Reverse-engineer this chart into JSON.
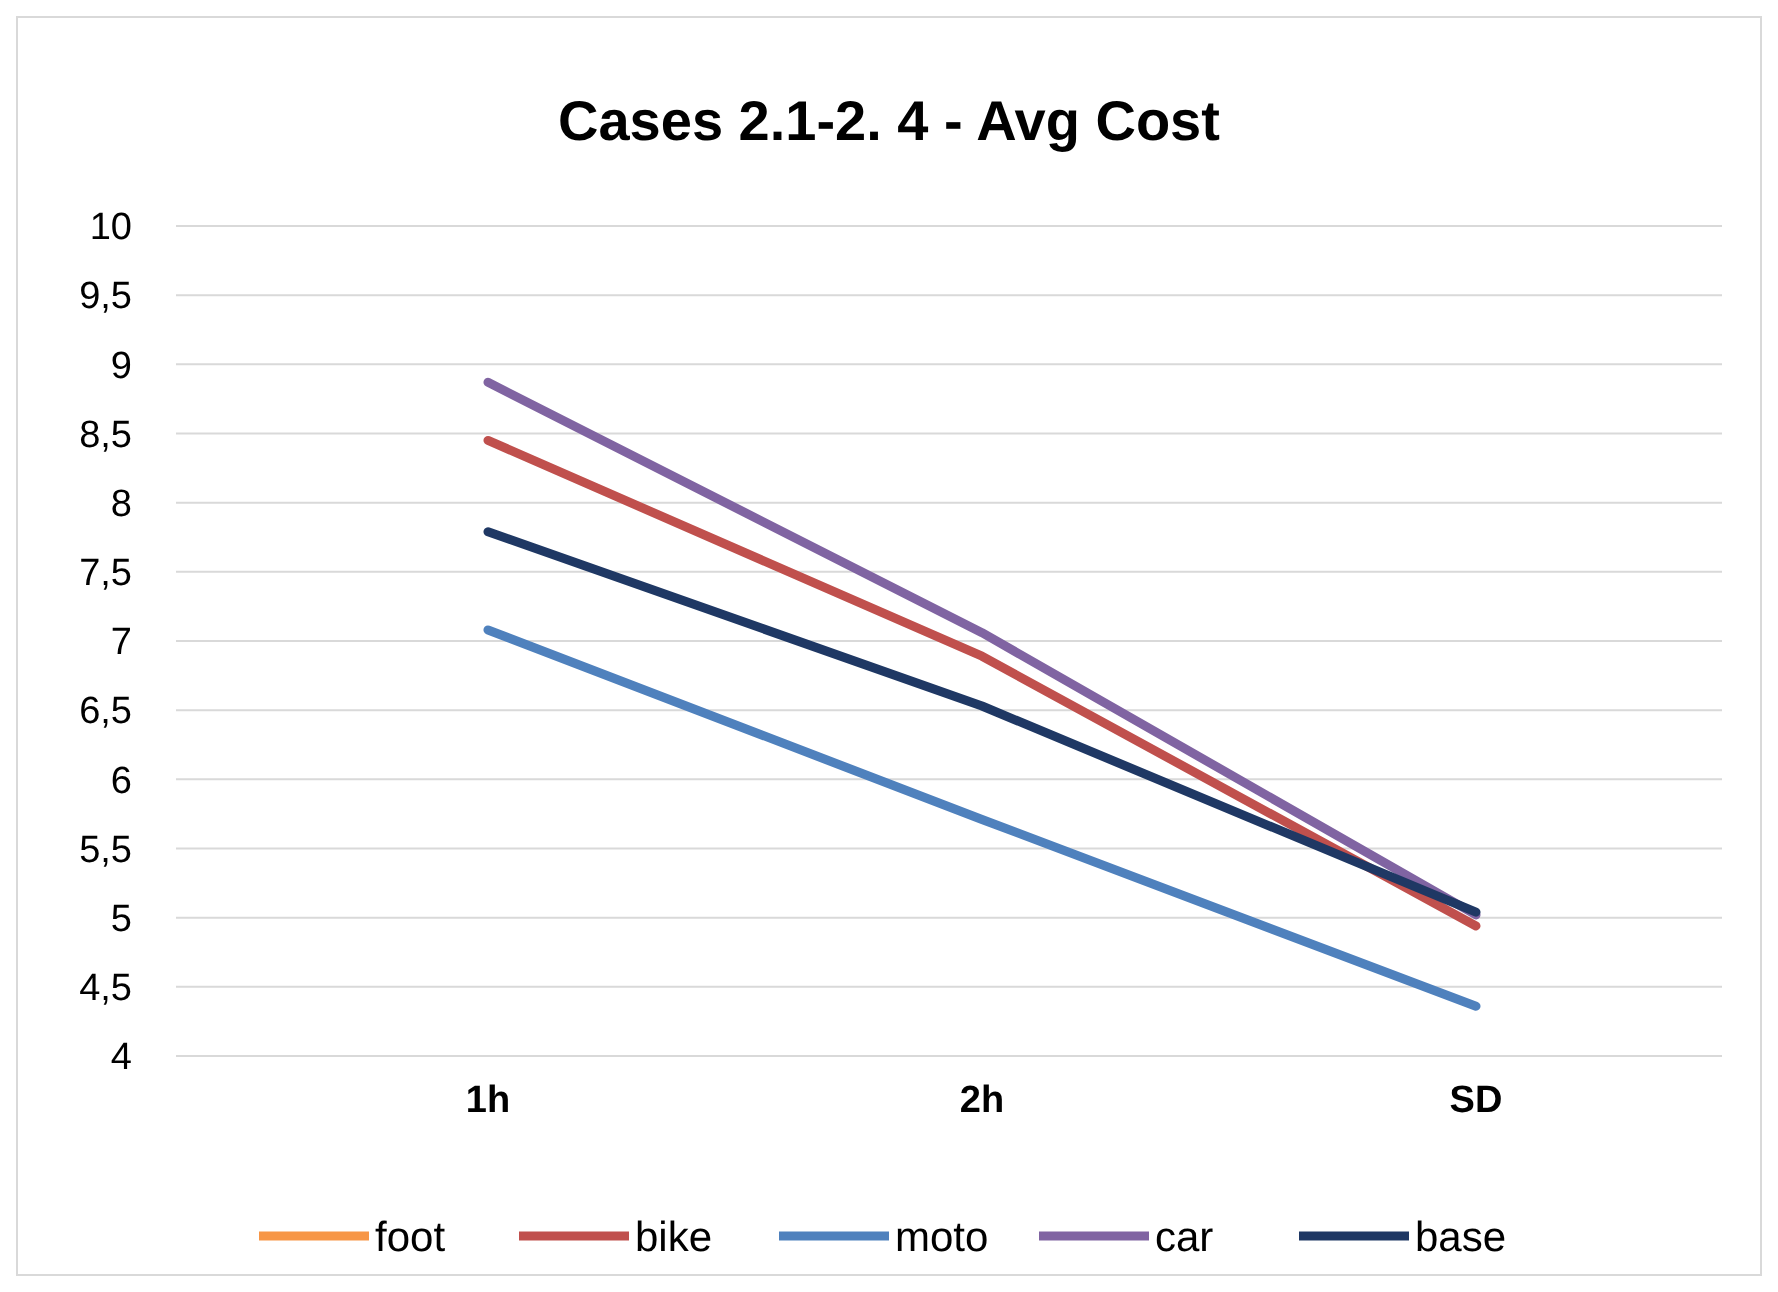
{
  "chart_data": {
    "type": "line",
    "title": "Cases 2.1-2. 4 - Avg Cost",
    "categories": [
      "1h",
      "2h",
      "SD"
    ],
    "series": [
      {
        "name": "foot",
        "color": "#f79646",
        "values": [
          null,
          null,
          null
        ]
      },
      {
        "name": "bike",
        "color": "#c0504d",
        "values": [
          8.45,
          6.89,
          4.94
        ]
      },
      {
        "name": "moto",
        "color": "#4f81bd",
        "values": [
          7.08,
          5.71,
          4.36
        ]
      },
      {
        "name": "car",
        "color": "#8064a2",
        "values": [
          8.87,
          7.06,
          5.02
        ]
      },
      {
        "name": "base",
        "color": "#1f3864",
        "values": [
          7.79,
          6.53,
          5.04
        ]
      }
    ],
    "ylim": [
      4,
      10
    ],
    "yticks": [
      {
        "value": 4,
        "label": "4"
      },
      {
        "value": 4.5,
        "label": "4,5"
      },
      {
        "value": 5,
        "label": "5"
      },
      {
        "value": 5.5,
        "label": "5,5"
      },
      {
        "value": 6,
        "label": "6"
      },
      {
        "value": 6.5,
        "label": "6,5"
      },
      {
        "value": 7,
        "label": "7"
      },
      {
        "value": 7.5,
        "label": "7,5"
      },
      {
        "value": 8,
        "label": "8"
      },
      {
        "value": 8.5,
        "label": "8,5"
      },
      {
        "value": 9,
        "label": "9"
      },
      {
        "value": 9.5,
        "label": "9,5"
      },
      {
        "value": 10,
        "label": "10"
      }
    ],
    "grid": "y",
    "legend": "bottom",
    "line_style": "solid"
  }
}
